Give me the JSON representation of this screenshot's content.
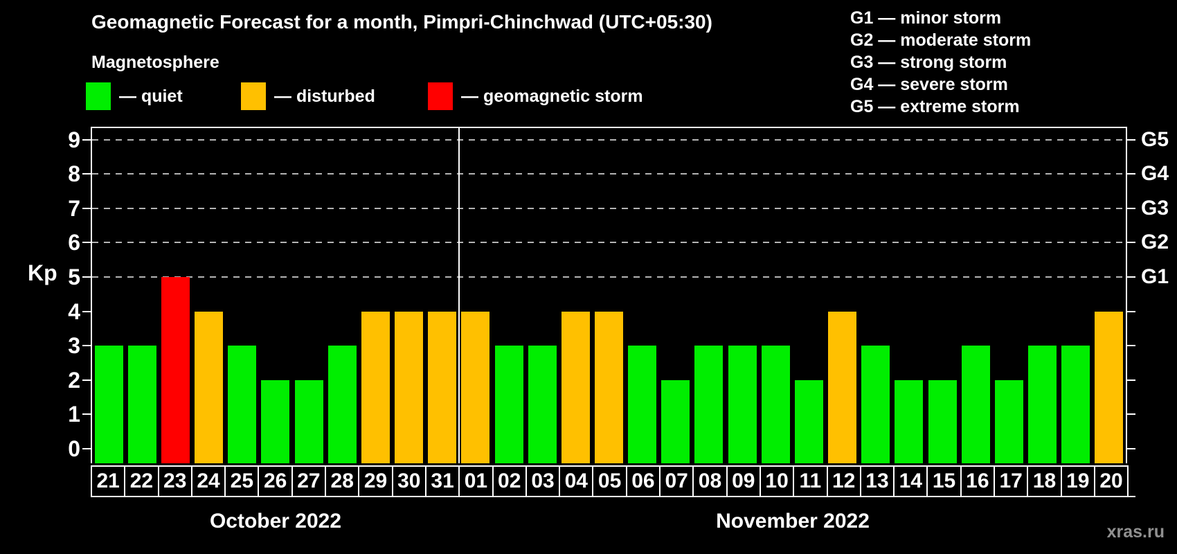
{
  "title": "Geomagnetic Forecast for a month, Pimpri-Chinchwad (UTC+05:30)",
  "magnetosphere_legend": {
    "heading": "Magnetosphere",
    "items": [
      {
        "name": "quiet",
        "label": "— quiet",
        "color": "#00ee00"
      },
      {
        "name": "disturbed",
        "label": "— disturbed",
        "color": "#ffc000"
      },
      {
        "name": "storm",
        "label": "— geomagnetic storm",
        "color": "#ff0000"
      }
    ]
  },
  "g_scale_legend": [
    "G1 — minor storm",
    "G2 — moderate storm",
    "G3 — strong storm",
    "G4 — severe storm",
    "G5 — extreme storm"
  ],
  "watermark": "xras.ru",
  "chart_data": {
    "type": "bar",
    "title": "Geomagnetic Forecast for a month, Pimpri-Chinchwad (UTC+05:30)",
    "ylabel": "Kp",
    "ylim": [
      0,
      9
    ],
    "yticks": [
      0,
      1,
      2,
      3,
      4,
      5,
      6,
      7,
      8,
      9
    ],
    "gridlines_at_kp": [
      5,
      6,
      7,
      8,
      9
    ],
    "grid": "dashed, only Kp 5-9",
    "legend_position": "top",
    "right_axis": [
      {
        "kp": 5,
        "label": "G1"
      },
      {
        "kp": 6,
        "label": "G2"
      },
      {
        "kp": 7,
        "label": "G3"
      },
      {
        "kp": 8,
        "label": "G4"
      },
      {
        "kp": 9,
        "label": "G5"
      }
    ],
    "status_colors": {
      "quiet": "#00ee00",
      "disturbed": "#ffc000",
      "storm": "#ff0000"
    },
    "months": [
      {
        "label": "October 2022",
        "days": [
          {
            "date": "21",
            "kp": 3,
            "status": "quiet"
          },
          {
            "date": "22",
            "kp": 3,
            "status": "quiet"
          },
          {
            "date": "23",
            "kp": 5,
            "status": "storm"
          },
          {
            "date": "24",
            "kp": 4,
            "status": "disturbed"
          },
          {
            "date": "25",
            "kp": 3,
            "status": "quiet"
          },
          {
            "date": "26",
            "kp": 2,
            "status": "quiet"
          },
          {
            "date": "27",
            "kp": 2,
            "status": "quiet"
          },
          {
            "date": "28",
            "kp": 3,
            "status": "quiet"
          },
          {
            "date": "29",
            "kp": 4,
            "status": "disturbed"
          },
          {
            "date": "30",
            "kp": 4,
            "status": "disturbed"
          },
          {
            "date": "31",
            "kp": 4,
            "status": "disturbed"
          }
        ]
      },
      {
        "label": "November 2022",
        "days": [
          {
            "date": "01",
            "kp": 4,
            "status": "disturbed"
          },
          {
            "date": "02",
            "kp": 3,
            "status": "quiet"
          },
          {
            "date": "03",
            "kp": 3,
            "status": "quiet"
          },
          {
            "date": "04",
            "kp": 4,
            "status": "disturbed"
          },
          {
            "date": "05",
            "kp": 4,
            "status": "disturbed"
          },
          {
            "date": "06",
            "kp": 3,
            "status": "quiet"
          },
          {
            "date": "07",
            "kp": 2,
            "status": "quiet"
          },
          {
            "date": "08",
            "kp": 3,
            "status": "quiet"
          },
          {
            "date": "09",
            "kp": 3,
            "status": "quiet"
          },
          {
            "date": "10",
            "kp": 3,
            "status": "quiet"
          },
          {
            "date": "11",
            "kp": 2,
            "status": "quiet"
          },
          {
            "date": "12",
            "kp": 4,
            "status": "disturbed"
          },
          {
            "date": "13",
            "kp": 3,
            "status": "quiet"
          },
          {
            "date": "14",
            "kp": 2,
            "status": "quiet"
          },
          {
            "date": "15",
            "kp": 2,
            "status": "quiet"
          },
          {
            "date": "16",
            "kp": 3,
            "status": "quiet"
          },
          {
            "date": "17",
            "kp": 2,
            "status": "quiet"
          },
          {
            "date": "18",
            "kp": 3,
            "status": "quiet"
          },
          {
            "date": "19",
            "kp": 3,
            "status": "quiet"
          },
          {
            "date": "20",
            "kp": 4,
            "status": "disturbed"
          }
        ]
      }
    ]
  }
}
